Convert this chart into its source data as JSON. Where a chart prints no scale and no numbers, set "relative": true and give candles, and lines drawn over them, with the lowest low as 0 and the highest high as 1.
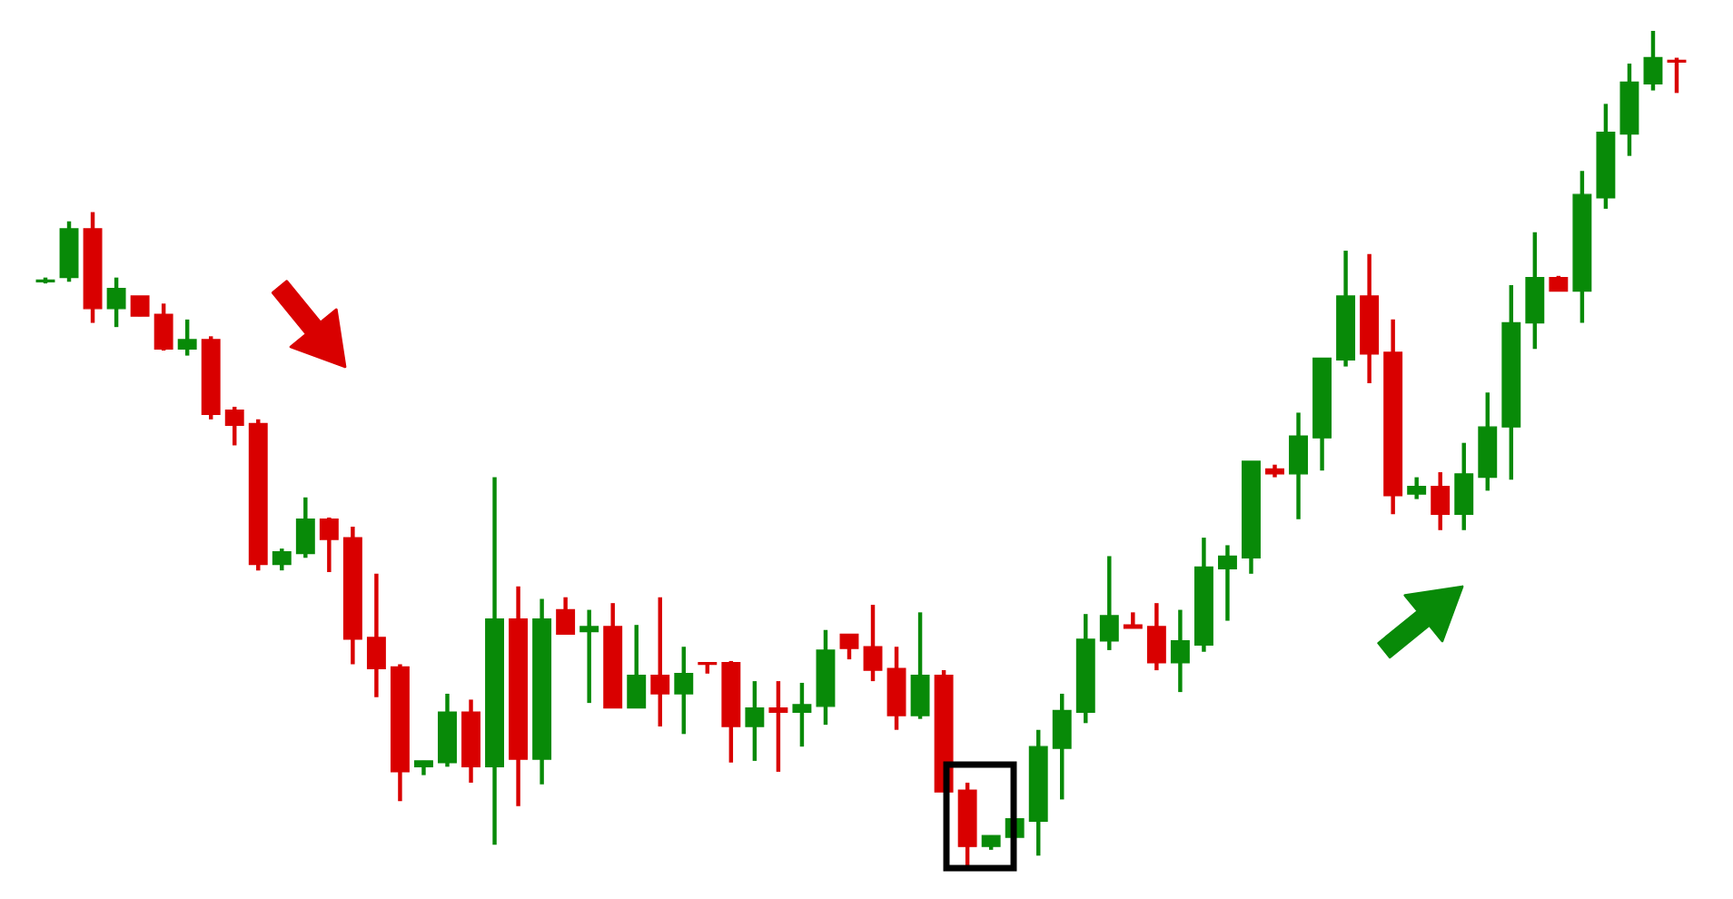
{
  "chart_data": {
    "type": "candlestick",
    "relative": true,
    "categories": [
      null,
      null,
      null,
      null,
      null,
      null,
      null,
      null,
      null,
      null,
      null,
      null,
      null,
      null,
      null,
      null,
      null,
      null,
      null,
      null,
      null,
      null,
      null,
      null,
      null,
      null,
      null,
      null,
      null,
      null,
      null,
      null,
      null,
      null,
      null,
      null,
      null,
      null,
      null,
      null,
      null,
      null,
      null,
      null,
      null,
      null,
      null,
      null,
      null,
      null,
      null,
      null,
      null,
      null,
      null,
      null,
      null,
      null,
      null,
      null,
      null,
      null,
      null,
      null,
      null,
      null,
      null,
      null,
      null,
      null
    ],
    "colors": [
      "#088a08",
      "#088a08",
      "#d90000",
      "#088a08",
      "#d90000",
      "#d90000",
      "#088a08",
      "#d90000",
      "#d90000",
      "#d90000",
      "#088a08",
      "#088a08",
      "#d90000",
      "#d90000",
      "#d90000",
      "#d90000",
      "#088a08",
      "#088a08",
      "#d90000",
      "#088a08",
      "#d90000",
      "#088a08",
      "#d90000",
      "#088a08",
      "#d90000",
      "#088a08",
      "#d90000",
      "#088a08",
      "#d90000",
      "#d90000",
      "#088a08",
      "#d90000",
      "#088a08",
      "#088a08",
      "#d90000",
      "#d90000",
      "#d90000",
      "#088a08",
      "#d90000",
      "#d90000",
      "#088a08",
      "#088a08",
      "#088a08",
      "#088a08",
      "#088a08",
      "#088a08",
      "#d90000",
      "#d90000",
      "#088a08",
      "#088a08",
      "#088a08",
      "#088a08",
      "#d90000",
      "#088a08",
      "#088a08",
      "#088a08",
      "#d90000",
      "#d90000",
      "#088a08",
      "#d90000",
      "#088a08",
      "#088a08",
      "#088a08",
      "#088a08",
      "#d90000",
      "#088a08",
      "#088a08",
      "#088a08",
      "#088a08",
      "#d90000"
    ],
    "ohlc": [
      [
        0.701,
        0.706,
        0.699,
        0.703
      ],
      [
        0.706,
        0.773,
        0.701,
        0.764
      ],
      [
        0.764,
        0.784,
        0.652,
        0.669
      ],
      [
        0.669,
        0.706,
        0.647,
        0.693
      ],
      [
        0.684,
        0.684,
        0.66,
        0.66
      ],
      [
        0.662,
        0.675,
        0.619,
        0.621
      ],
      [
        0.621,
        0.656,
        0.613,
        0.632
      ],
      [
        0.632,
        0.636,
        0.537,
        0.543
      ],
      [
        0.548,
        0.552,
        0.506,
        0.53
      ],
      [
        0.532,
        0.537,
        0.357,
        0.364
      ],
      [
        0.364,
        0.383,
        0.357,
        0.379
      ],
      [
        0.377,
        0.444,
        0.372,
        0.418
      ],
      [
        0.418,
        0.42,
        0.355,
        0.394
      ],
      [
        0.396,
        0.409,
        0.245,
        0.275
      ],
      [
        0.277,
        0.353,
        0.206,
        0.24
      ],
      [
        0.242,
        0.245,
        0.082,
        0.117
      ],
      [
        0.123,
        0.13,
        0.113,
        0.13
      ],
      [
        0.128,
        0.21,
        0.123,
        0.188
      ],
      [
        0.188,
        0.203,
        0.104,
        0.123
      ],
      [
        0.123,
        0.468,
        0.03,
        0.299
      ],
      [
        0.299,
        0.338,
        0.076,
        0.132
      ],
      [
        0.132,
        0.323,
        0.102,
        0.299
      ],
      [
        0.31,
        0.325,
        0.281,
        0.281
      ],
      [
        0.284,
        0.31,
        0.199,
        0.29
      ],
      [
        0.29,
        0.318,
        0.193,
        0.193
      ],
      [
        0.193,
        0.292,
        0.193,
        0.232
      ],
      [
        0.232,
        0.325,
        0.171,
        0.21
      ],
      [
        0.21,
        0.266,
        0.162,
        0.234
      ],
      [
        0.247,
        0.247,
        0.234,
        0.245
      ],
      [
        0.247,
        0.249,
        0.128,
        0.171
      ],
      [
        0.171,
        0.225,
        0.13,
        0.193
      ],
      [
        0.193,
        0.225,
        0.117,
        0.188
      ],
      [
        0.188,
        0.223,
        0.147,
        0.197
      ],
      [
        0.195,
        0.286,
        0.173,
        0.262
      ],
      [
        0.281,
        0.281,
        0.251,
        0.264
      ],
      [
        0.266,
        0.316,
        0.225,
        0.238
      ],
      [
        0.24,
        0.266,
        0.167,
        0.184
      ],
      [
        0.184,
        0.307,
        0.18,
        0.232
      ],
      [
        0.232,
        0.238,
        0.093,
        0.093
      ],
      [
        0.095,
        0.104,
        0,
        0.028
      ],
      [
        0.028,
        0.041,
        0.024,
        0.041
      ],
      [
        0.039,
        0.061,
        0.039,
        0.061
      ],
      [
        0.058,
        0.167,
        0.017,
        0.147
      ],
      [
        0.145,
        0.21,
        0.084,
        0.19
      ],
      [
        0.188,
        0.305,
        0.175,
        0.275
      ],
      [
        0.273,
        0.374,
        0.262,
        0.303
      ],
      [
        0.292,
        0.307,
        0.288,
        0.288
      ],
      [
        0.29,
        0.318,
        0.238,
        0.247
      ],
      [
        0.247,
        0.31,
        0.212,
        0.273
      ],
      [
        0.268,
        0.396,
        0.26,
        0.361
      ],
      [
        0.359,
        0.387,
        0.297,
        0.374
      ],
      [
        0.372,
        0.487,
        0.353,
        0.487
      ],
      [
        0.478,
        0.483,
        0.468,
        0.472
      ],
      [
        0.472,
        0.545,
        0.418,
        0.517
      ],
      [
        0.515,
        0.61,
        0.476,
        0.61
      ],
      [
        0.608,
        0.738,
        0.6,
        0.684
      ],
      [
        0.684,
        0.734,
        0.58,
        0.615
      ],
      [
        0.617,
        0.656,
        0.424,
        0.446
      ],
      [
        0.448,
        0.468,
        0.442,
        0.457
      ],
      [
        0.457,
        0.474,
        0.405,
        0.424
      ],
      [
        0.424,
        0.509,
        0.405,
        0.472
      ],
      [
        0.468,
        0.569,
        0.452,
        0.528
      ],
      [
        0.528,
        0.697,
        0.465,
        0.652
      ],
      [
        0.652,
        0.76,
        0.621,
        0.706
      ],
      [
        0.706,
        0.708,
        0.69,
        0.69
      ],
      [
        0.69,
        0.833,
        0.652,
        0.805
      ],
      [
        0.801,
        0.913,
        0.788,
        0.879
      ],
      [
        0.877,
        0.961,
        0.851,
        0.939
      ],
      [
        0.937,
        1,
        0.929,
        0.968
      ],
      [
        0.965,
        0.968,
        0.926,
        0.963
      ]
    ]
  }
}
